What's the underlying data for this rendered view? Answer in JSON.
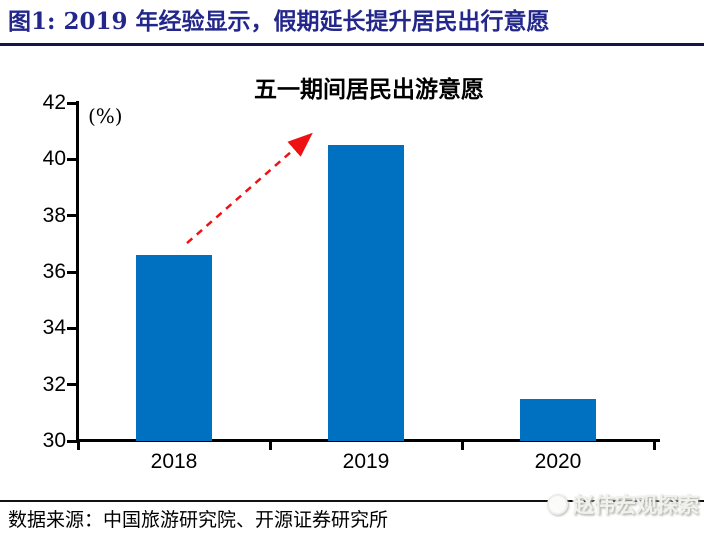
{
  "header": {
    "title": "图1:  2019 年经验显示，假期延长提升居民出行意愿"
  },
  "chart": {
    "title": "五一期间居民出游意愿",
    "unit_label": "(%)"
  },
  "chart_data": {
    "type": "bar",
    "title": "五一期间居民出游意愿",
    "categories": [
      "2018",
      "2019",
      "2020"
    ],
    "values": [
      36.6,
      40.5,
      31.5
    ],
    "unit": "%",
    "ylabel": "(%)",
    "xlabel": "",
    "ylim": [
      30,
      42
    ],
    "yticks": [
      30,
      32,
      34,
      36,
      38,
      40,
      42
    ],
    "grid": false,
    "legend": "none",
    "bar_color": "#0070C0",
    "annotation": {
      "type": "dashed-arrow",
      "from": "2018",
      "to": "2019",
      "color": "#EE1111",
      "meaning": "rise in travel willingness from 2018 to 2019"
    }
  },
  "footer": {
    "source": "数据来源：中国旅游研究院、开源证券研究所"
  },
  "watermark": {
    "text": "赵伟宏观探索"
  },
  "colors": {
    "header_title": "#23278B",
    "header_rule": "#15154A",
    "bar": "#0070C0",
    "arrow": "#EE1111",
    "axis": "#000000"
  }
}
